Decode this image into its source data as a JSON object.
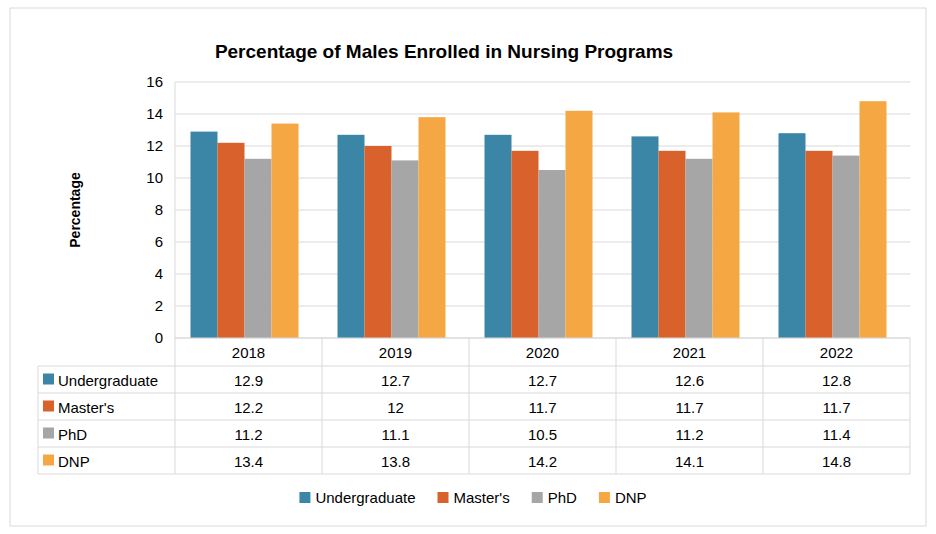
{
  "chart_data": {
    "type": "bar",
    "title": "Percentage of Males Enrolled in Nursing Programs",
    "y_label": "Percentage",
    "categories": [
      "2018",
      "2019",
      "2020",
      "2021",
      "2022"
    ],
    "series": [
      {
        "name": "Undergraduate",
        "color": "#3b86a6",
        "values": [
          12.9,
          12.7,
          12.7,
          12.6,
          12.8
        ]
      },
      {
        "name": "Master's",
        "color": "#d9612b",
        "values": [
          12.2,
          12,
          11.7,
          11.7,
          11.7
        ]
      },
      {
        "name": "PhD",
        "color": "#a6a6a6",
        "values": [
          11.2,
          11.1,
          10.5,
          11.2,
          11.4
        ]
      },
      {
        "name": "DNP",
        "color": "#f4a742",
        "values": [
          13.4,
          13.8,
          14.2,
          14.1,
          14.8
        ]
      }
    ],
    "ylim": [
      0,
      16
    ],
    "yticks": [
      0,
      2,
      4,
      6,
      8,
      10,
      12,
      14,
      16
    ],
    "grid": true,
    "legend": "bottom"
  }
}
